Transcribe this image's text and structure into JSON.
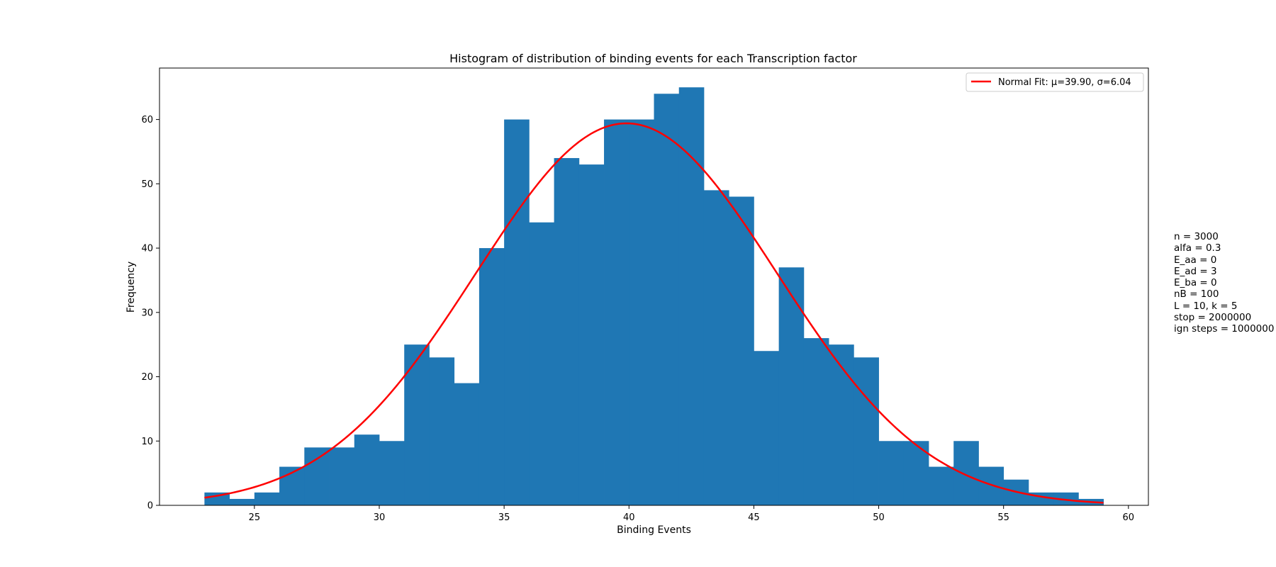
{
  "chart_data": {
    "type": "bar",
    "title": "Histogram of distribution of binding events for each Transcription factor",
    "xlabel": "Binding Events",
    "ylabel": "Frequency",
    "xlim": [
      21.2,
      60.8
    ],
    "ylim": [
      0,
      68
    ],
    "xticks": [
      25,
      30,
      35,
      40,
      45,
      50,
      55,
      60
    ],
    "yticks": [
      0,
      10,
      20,
      30,
      40,
      50,
      60
    ],
    "bar_color": "#1f77b4",
    "bins": [
      {
        "x0": 23,
        "x1": 24,
        "value": 2
      },
      {
        "x0": 24,
        "x1": 25,
        "value": 1
      },
      {
        "x0": 25,
        "x1": 26,
        "value": 2
      },
      {
        "x0": 26,
        "x1": 27,
        "value": 6
      },
      {
        "x0": 27,
        "x1": 28,
        "value": 9
      },
      {
        "x0": 28,
        "x1": 29,
        "value": 9
      },
      {
        "x0": 29,
        "x1": 30,
        "value": 11
      },
      {
        "x0": 30,
        "x1": 31,
        "value": 10
      },
      {
        "x0": 31,
        "x1": 32,
        "value": 25
      },
      {
        "x0": 32,
        "x1": 33,
        "value": 23
      },
      {
        "x0": 33,
        "x1": 34,
        "value": 19
      },
      {
        "x0": 34,
        "x1": 35,
        "value": 40
      },
      {
        "x0": 35,
        "x1": 36,
        "value": 60
      },
      {
        "x0": 36,
        "x1": 37,
        "value": 44
      },
      {
        "x0": 37,
        "x1": 38,
        "value": 54
      },
      {
        "x0": 38,
        "x1": 39,
        "value": 53
      },
      {
        "x0": 39,
        "x1": 40,
        "value": 60
      },
      {
        "x0": 40,
        "x1": 41,
        "value": 60
      },
      {
        "x0": 41,
        "x1": 42,
        "value": 64
      },
      {
        "x0": 42,
        "x1": 43,
        "value": 65
      },
      {
        "x0": 43,
        "x1": 44,
        "value": 49
      },
      {
        "x0": 44,
        "x1": 45,
        "value": 48
      },
      {
        "x0": 45,
        "x1": 46,
        "value": 24
      },
      {
        "x0": 46,
        "x1": 47,
        "value": 37
      },
      {
        "x0": 47,
        "x1": 48,
        "value": 26
      },
      {
        "x0": 48,
        "x1": 49,
        "value": 25
      },
      {
        "x0": 49,
        "x1": 50,
        "value": 23
      },
      {
        "x0": 50,
        "x1": 51,
        "value": 10
      },
      {
        "x0": 51,
        "x1": 52,
        "value": 10
      },
      {
        "x0": 52,
        "x1": 53,
        "value": 6
      },
      {
        "x0": 53,
        "x1": 54,
        "value": 10
      },
      {
        "x0": 54,
        "x1": 55,
        "value": 6
      },
      {
        "x0": 55,
        "x1": 56,
        "value": 4
      },
      {
        "x0": 56,
        "x1": 57,
        "value": 2
      },
      {
        "x0": 57,
        "x1": 58,
        "value": 2
      },
      {
        "x0": 58,
        "x1": 59,
        "value": 1
      }
    ],
    "fit": {
      "name": "Normal Fit: μ=39.90, σ=6.04",
      "mu": 39.9,
      "sigma": 6.04,
      "peak": 59.4,
      "x_range": [
        23,
        59
      ],
      "color": "#ff0000"
    },
    "legend_position": "top-right",
    "grid": false
  },
  "params": [
    "n = 3000",
    "alfa = 0.3",
    "E_aa = 0",
    "E_ad = 3",
    "E_ba = 0",
    "nB = 100",
    "L = 10, k = 5",
    "stop = 2000000",
    "ign steps = 1000000"
  ]
}
